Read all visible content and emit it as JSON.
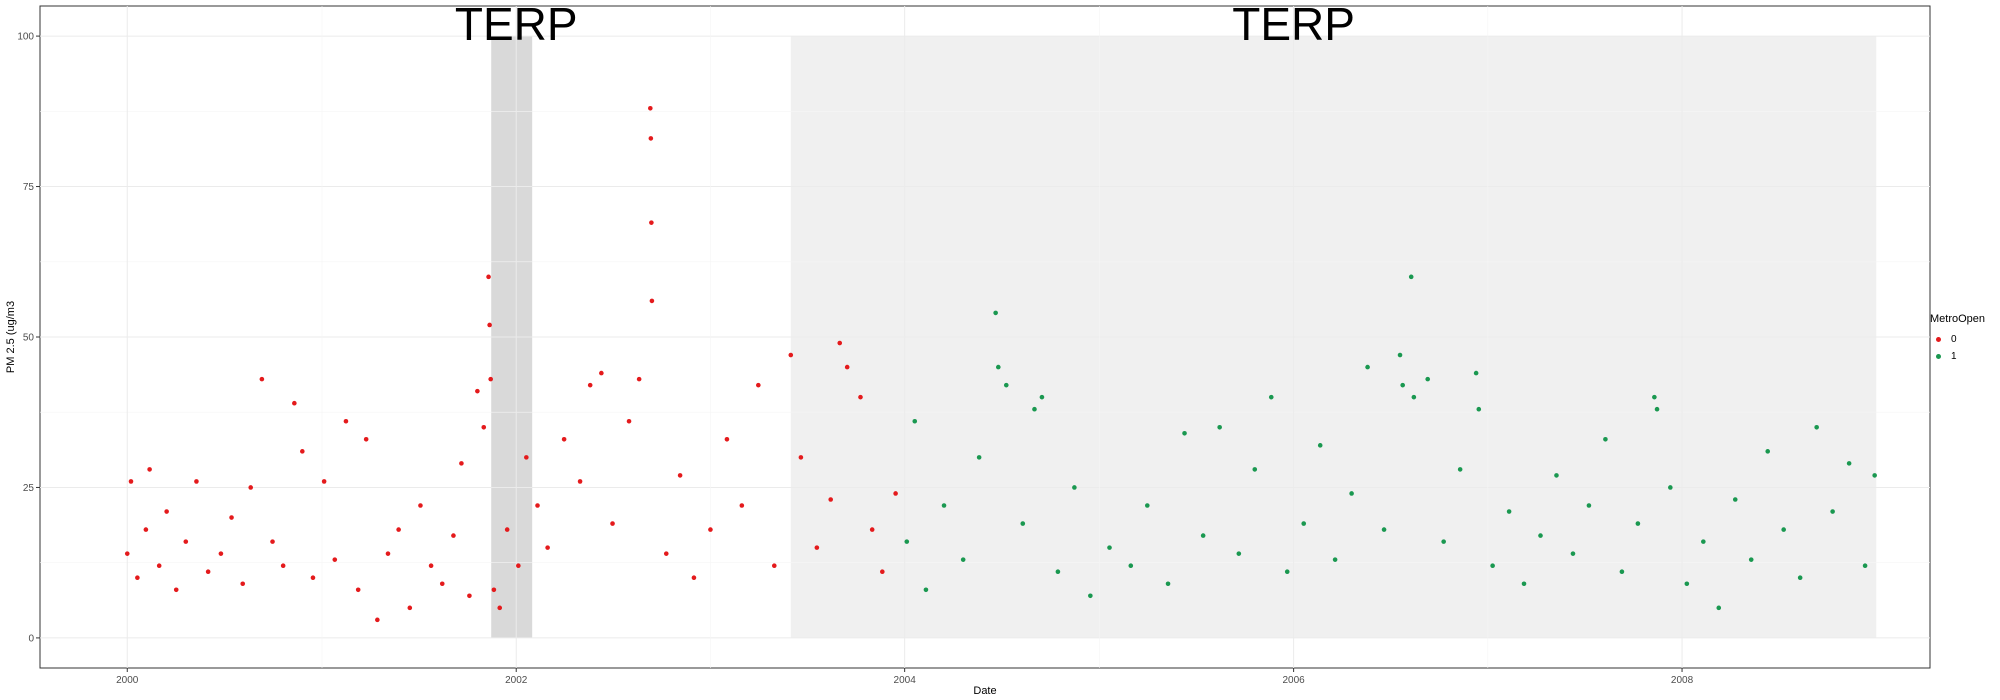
{
  "chart_data": {
    "type": "scatter",
    "xlabel": "Date",
    "ylabel": "PM 2.5 (ug/m3",
    "x_ticks": [
      "2000",
      "2002",
      "2004",
      "2006",
      "2008"
    ],
    "y_ticks": [
      "0",
      "25",
      "50",
      "75",
      "100"
    ],
    "x_range": [
      "1999-07-21",
      "2009-04-11"
    ],
    "ylim": [
      -5,
      105
    ],
    "grid": true,
    "annotations": [
      {
        "text": "TERP",
        "x": "2002-01-01",
        "y": 102
      },
      {
        "text": "TERP",
        "x": "2006-01-01",
        "y": 102
      }
    ],
    "shaded_regions": [
      {
        "x_start": "2001-11-15",
        "x_end": "2002-01-31",
        "y_start": 0,
        "y_end": 100,
        "color": "#d9d9d9"
      },
      {
        "x_start": "2003-06-01",
        "x_end": "2008-12-31",
        "y_start": 0,
        "y_end": 100,
        "color": "#f0f0f0"
      }
    ],
    "legend": {
      "title": "MetroOpen",
      "position": "right",
      "entries": [
        {
          "label": "0",
          "color": "#e41a1c"
        },
        {
          "label": "1",
          "color": "#1a9850"
        }
      ]
    },
    "series": [
      {
        "name": "0",
        "color": "#e41a1c",
        "points": [
          [
            "2000-01-01",
            14
          ],
          [
            "2000-01-08",
            26
          ],
          [
            "2000-01-20",
            10
          ],
          [
            "2000-02-05",
            18
          ],
          [
            "2000-02-12",
            28
          ],
          [
            "2000-03-01",
            12
          ],
          [
            "2000-03-15",
            21
          ],
          [
            "2000-04-02",
            8
          ],
          [
            "2000-04-20",
            16
          ],
          [
            "2000-05-10",
            26
          ],
          [
            "2000-06-01",
            11
          ],
          [
            "2000-06-25",
            14
          ],
          [
            "2000-07-15",
            20
          ],
          [
            "2000-08-05",
            9
          ],
          [
            "2000-08-20",
            25
          ],
          [
            "2000-09-10",
            43
          ],
          [
            "2000-09-30",
            16
          ],
          [
            "2000-10-20",
            12
          ],
          [
            "2000-11-10",
            39
          ],
          [
            "2000-11-25",
            31
          ],
          [
            "2000-12-15",
            10
          ],
          [
            "2001-01-05",
            26
          ],
          [
            "2001-01-25",
            13
          ],
          [
            "2001-02-15",
            36
          ],
          [
            "2001-03-10",
            8
          ],
          [
            "2001-03-25",
            33
          ],
          [
            "2001-04-15",
            3
          ],
          [
            "2001-05-05",
            14
          ],
          [
            "2001-05-25",
            18
          ],
          [
            "2001-06-15",
            5
          ],
          [
            "2001-07-05",
            22
          ],
          [
            "2001-07-25",
            12
          ],
          [
            "2001-08-15",
            9
          ],
          [
            "2001-09-05",
            17
          ],
          [
            "2001-09-20",
            29
          ],
          [
            "2001-10-05",
            7
          ],
          [
            "2001-10-20",
            41
          ],
          [
            "2001-11-01",
            35
          ],
          [
            "2001-11-10",
            60
          ],
          [
            "2001-11-12",
            52
          ],
          [
            "2001-11-14",
            43
          ],
          [
            "2001-11-20",
            8
          ],
          [
            "2001-12-01",
            5
          ],
          [
            "2001-12-15",
            18
          ],
          [
            "2002-01-05",
            12
          ],
          [
            "2002-01-20",
            30
          ],
          [
            "2002-02-10",
            22
          ],
          [
            "2002-03-01",
            15
          ],
          [
            "2002-04-01",
            33
          ],
          [
            "2002-05-01",
            26
          ],
          [
            "2002-05-20",
            42
          ],
          [
            "2002-06-10",
            44
          ],
          [
            "2002-07-01",
            19
          ],
          [
            "2002-08-01",
            36
          ],
          [
            "2002-08-20",
            43
          ],
          [
            "2002-09-10",
            88
          ],
          [
            "2002-09-11",
            83
          ],
          [
            "2002-09-12",
            69
          ],
          [
            "2002-09-13",
            56
          ],
          [
            "2002-10-10",
            14
          ],
          [
            "2002-11-05",
            27
          ],
          [
            "2002-12-01",
            10
          ],
          [
            "2003-01-01",
            18
          ],
          [
            "2003-02-01",
            33
          ],
          [
            "2003-03-01",
            22
          ],
          [
            "2003-04-01",
            42
          ],
          [
            "2003-05-01",
            12
          ],
          [
            "2003-06-01",
            47
          ],
          [
            "2003-06-20",
            30
          ],
          [
            "2003-07-20",
            15
          ],
          [
            "2003-08-15",
            23
          ],
          [
            "2003-09-01",
            49
          ],
          [
            "2003-09-15",
            45
          ],
          [
            "2003-10-10",
            40
          ],
          [
            "2003-11-01",
            18
          ],
          [
            "2003-11-20",
            11
          ],
          [
            "2003-12-15",
            24
          ]
        ]
      },
      {
        "name": "1",
        "color": "#1a9850",
        "points": [
          [
            "2004-01-05",
            16
          ],
          [
            "2004-01-20",
            36
          ],
          [
            "2004-02-10",
            8
          ],
          [
            "2004-03-15",
            22
          ],
          [
            "2004-04-20",
            13
          ],
          [
            "2004-05-20",
            30
          ],
          [
            "2004-06-20",
            54
          ],
          [
            "2004-06-25",
            45
          ],
          [
            "2004-07-10",
            42
          ],
          [
            "2004-08-10",
            19
          ],
          [
            "2004-09-01",
            38
          ],
          [
            "2004-09-15",
            40
          ],
          [
            "2004-10-15",
            11
          ],
          [
            "2004-11-15",
            25
          ],
          [
            "2004-12-15",
            7
          ],
          [
            "2005-01-20",
            15
          ],
          [
            "2005-03-01",
            12
          ],
          [
            "2005-04-01",
            22
          ],
          [
            "2005-05-10",
            9
          ],
          [
            "2005-06-10",
            34
          ],
          [
            "2005-07-15",
            17
          ],
          [
            "2005-08-15",
            35
          ],
          [
            "2005-09-20",
            14
          ],
          [
            "2005-10-20",
            28
          ],
          [
            "2005-11-20",
            40
          ],
          [
            "2005-12-20",
            11
          ],
          [
            "2006-01-20",
            19
          ],
          [
            "2006-02-20",
            32
          ],
          [
            "2006-03-20",
            13
          ],
          [
            "2006-04-20",
            24
          ],
          [
            "2006-05-20",
            45
          ],
          [
            "2006-06-20",
            18
          ],
          [
            "2006-07-20",
            47
          ],
          [
            "2006-07-25",
            42
          ],
          [
            "2006-08-10",
            60
          ],
          [
            "2006-08-15",
            40
          ],
          [
            "2006-09-10",
            43
          ],
          [
            "2006-10-10",
            16
          ],
          [
            "2006-11-10",
            28
          ],
          [
            "2006-12-10",
            44
          ],
          [
            "2006-12-15",
            38
          ],
          [
            "2007-01-10",
            12
          ],
          [
            "2007-02-10",
            21
          ],
          [
            "2007-03-10",
            9
          ],
          [
            "2007-04-10",
            17
          ],
          [
            "2007-05-10",
            27
          ],
          [
            "2007-06-10",
            14
          ],
          [
            "2007-07-10",
            22
          ],
          [
            "2007-08-10",
            33
          ],
          [
            "2007-09-10",
            11
          ],
          [
            "2007-10-10",
            19
          ],
          [
            "2007-11-10",
            40
          ],
          [
            "2007-11-15",
            38
          ],
          [
            "2007-12-10",
            25
          ],
          [
            "2008-01-10",
            9
          ],
          [
            "2008-02-10",
            16
          ],
          [
            "2008-03-10",
            5
          ],
          [
            "2008-04-10",
            23
          ],
          [
            "2008-05-10",
            13
          ],
          [
            "2008-06-10",
            31
          ],
          [
            "2008-07-10",
            18
          ],
          [
            "2008-08-10",
            10
          ],
          [
            "2008-09-10",
            35
          ],
          [
            "2008-10-10",
            21
          ],
          [
            "2008-11-10",
            29
          ],
          [
            "2008-12-10",
            12
          ],
          [
            "2008-12-28",
            27
          ]
        ]
      }
    ]
  }
}
